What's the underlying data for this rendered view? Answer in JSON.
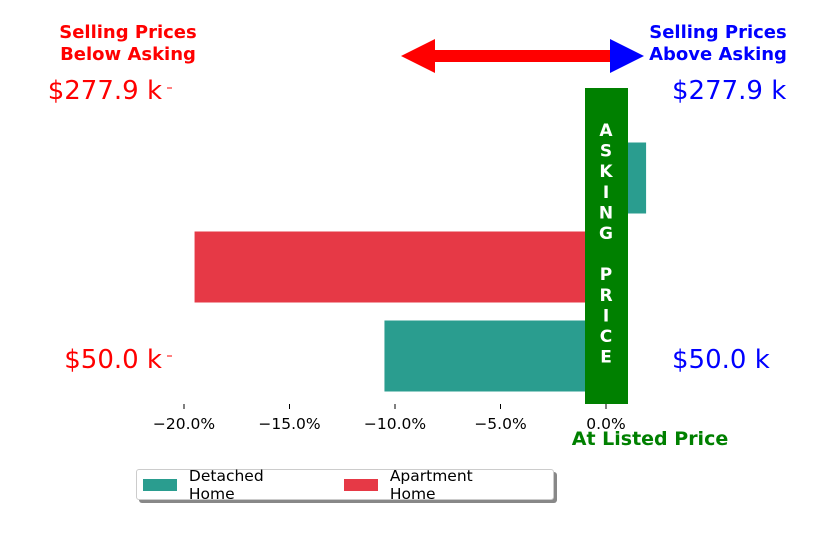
{
  "chart_data": {
    "type": "bar",
    "orientation": "horizontal",
    "categories": [
      "$50.0 k",
      "",
      "$277.9 k"
    ],
    "series": [
      {
        "name": "Detached Home",
        "color": "#2a9d8f",
        "values": [
          {
            "row": 0,
            "value": -10.5
          },
          {
            "row": 2,
            "value": 1.9
          }
        ]
      },
      {
        "name": "Apartment Home",
        "color": "#e63946",
        "values": [
          {
            "row": 1,
            "value": -19.5
          }
        ]
      }
    ],
    "xlim": [
      -20.0,
      0.0
    ],
    "xticks": [
      -20.0,
      -15.0,
      -10.0,
      -5.0,
      0.0
    ],
    "xtick_labels": [
      "−20.0%",
      "−15.0%",
      "−10.0%",
      "−5.0%",
      "0.0%"
    ],
    "xlabel": "At Listed Price",
    "legend_position": "bottom-left"
  },
  "annotations": {
    "left_header_line1": "Selling Prices",
    "left_header_line2": "Below Asking",
    "right_header_line1": "Selling Prices",
    "right_header_line2": "Above Asking",
    "left_top_price": "$277.9 k",
    "right_top_price": "$277.9 k",
    "left_bottom_price": "$50.0 k",
    "right_bottom_price": "$50.0 k",
    "asking_letters": [
      "A",
      "S",
      "K",
      "I",
      "N",
      "G",
      "",
      "P",
      "R",
      "I",
      "C",
      "E"
    ]
  },
  "colors": {
    "below": "#ff0000",
    "above": "#0000ff",
    "asking": "#008000",
    "detached": "#2a9d8f",
    "apartment": "#e63946"
  }
}
